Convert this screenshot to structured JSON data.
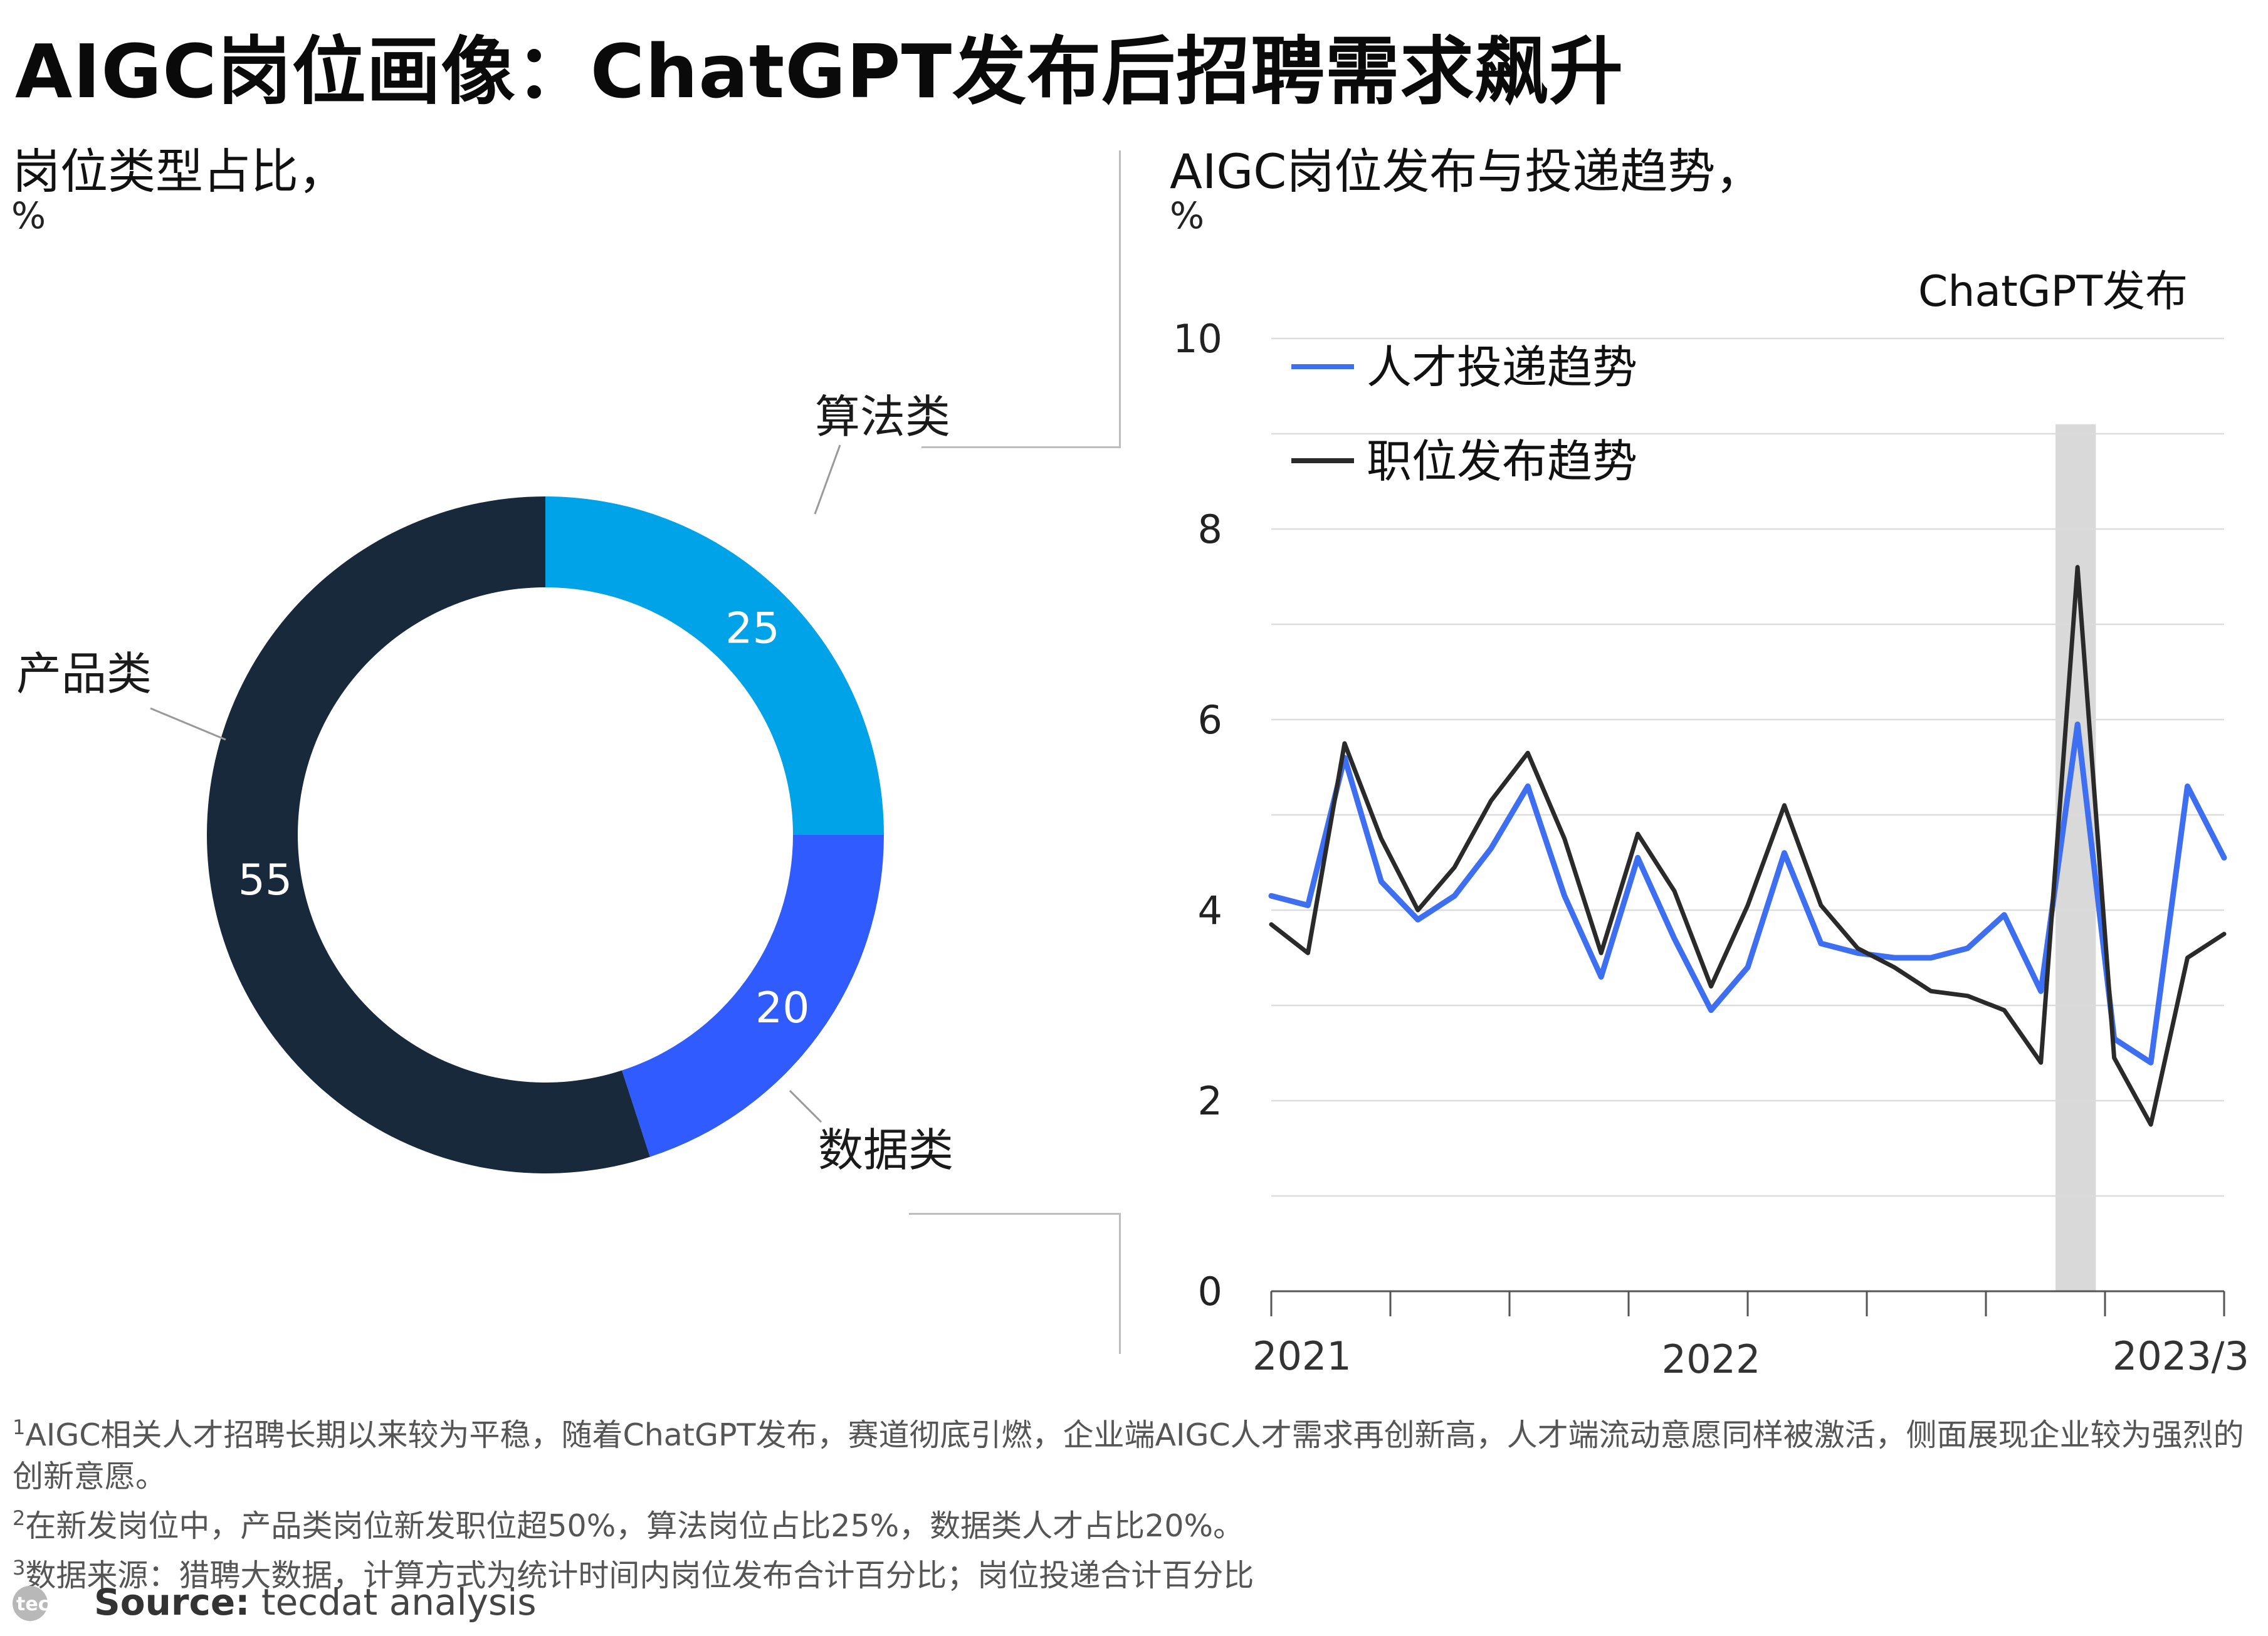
{
  "title": "AIGC岗位画像：ChatGPT发布后招聘需求飙升",
  "left_panel": {
    "title": "岗位类型占比，",
    "unit": "%"
  },
  "right_panel": {
    "title": "AIGC岗位发布与投递趋势，",
    "unit": "%",
    "annotation": "ChatGPT发布"
  },
  "footnotes": [
    {
      "num": "1",
      "text": "AIGC相关人才招聘长期以来较为平稳，随着ChatGPT发布，赛道彻底引燃，企业端AIGC人才需求再创新高，人才端流动意愿同样被激活，侧面展现企业较为强烈的创新意愿。"
    },
    {
      "num": "2",
      "text": "在新发岗位中，产品类岗位新发职位超50%，算法岗位占比25%，数据类人才占比20%。"
    },
    {
      "num": "3",
      "text": "数据来源：猎聘大数据，计算方式为统计时间内岗位发布合计百分比；岗位投递合计百分比"
    }
  ],
  "source": {
    "label": "Source:",
    "text": "tecdat analysis",
    "logo_text": "tecdat"
  },
  "chart_data": [
    {
      "type": "pie",
      "style": "donut",
      "slices": [
        {
          "label": "算法类",
          "value": 25,
          "color": "#00a3e8"
        },
        {
          "label": "数据类",
          "value": 20,
          "color": "#2f5bff"
        },
        {
          "label": "产品类",
          "value": 55,
          "color": "#17293b"
        }
      ]
    },
    {
      "type": "line",
      "xlabel": "",
      "ylabel": "",
      "ylim": [
        0,
        10
      ],
      "y_ticks": [
        0,
        2,
        4,
        6,
        8,
        10
      ],
      "x_tick_labels": [
        {
          "label": "2021",
          "x": 0
        },
        {
          "label": "2022",
          "x": 12
        },
        {
          "label": "2023/3",
          "x": 26
        }
      ],
      "x_range": [
        0,
        26
      ],
      "grid": true,
      "legend": "top-left",
      "highlight": {
        "label": "ChatGPT发布",
        "x": [
          21.4,
          22.5
        ]
      },
      "series": [
        {
          "name": "人才投递趋势",
          "color": "#3e6ff0",
          "values": [
            4.15,
            4.05,
            5.6,
            4.3,
            3.9,
            4.15,
            4.65,
            5.3,
            4.15,
            3.3,
            4.55,
            3.7,
            2.95,
            3.4,
            4.6,
            3.65,
            3.55,
            3.5,
            3.5,
            3.6,
            3.95,
            3.15,
            5.95,
            2.65,
            2.4,
            5.3,
            4.55
          ]
        },
        {
          "name": "职位发布趋势",
          "color": "#2a2a2a",
          "values": [
            3.85,
            3.55,
            5.75,
            4.75,
            4.0,
            4.45,
            5.15,
            5.65,
            4.75,
            3.55,
            4.8,
            4.2,
            3.2,
            4.05,
            5.1,
            4.05,
            3.6,
            3.4,
            3.15,
            3.1,
            2.95,
            2.4,
            7.6,
            2.45,
            1.75,
            3.5,
            3.75
          ]
        }
      ]
    }
  ]
}
